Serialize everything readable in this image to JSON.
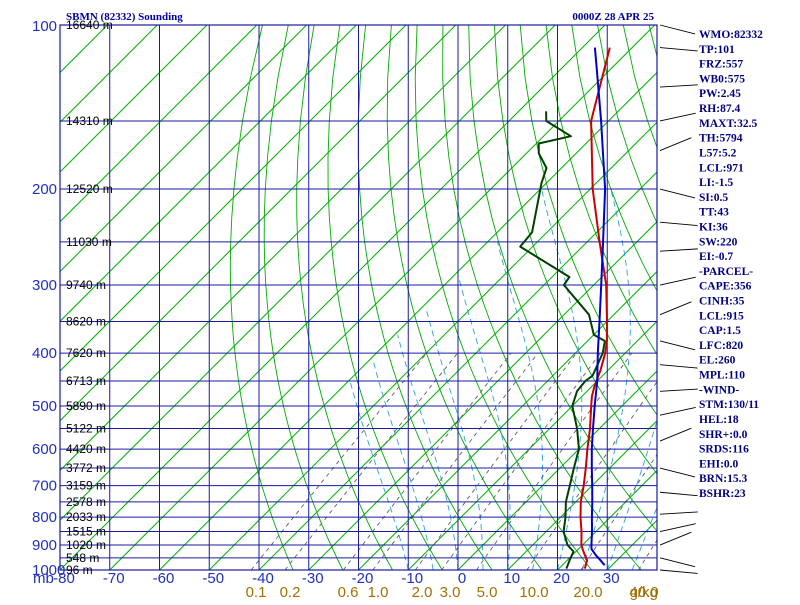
{
  "header": {
    "station": "SBMN (82332) Sounding",
    "time": "0000Z 28 APR 25"
  },
  "axis_labels": {
    "pressure_unit": "mb",
    "mixing_ratio_unit": "g/kg"
  },
  "indices": [
    "WMO:82332",
    "TP:101",
    "FRZ:557",
    "WB0:575",
    "PW:2.45",
    "RH:87.4",
    "MAXT:32.5",
    "TH:5794",
    "L57:5.2",
    "LCL:971",
    "LI:-1.5",
    "SI:0.5",
    "TT:43",
    "KI:36",
    "SW:220",
    "EI:-0.7",
    "-PARCEL-",
    "CAPE:356",
    "CINH:35",
    "LCL:915",
    "CAP:1.5",
    "LFC:820",
    "EL:260",
    "MPL:110",
    "-WIND-",
    "STM:130/11",
    "HEL:18",
    "SHR+:0.0",
    "SRDS:116",
    "EHI:0.0",
    "BRN:15.3",
    "BSHR:23"
  ],
  "colors": {
    "temperature": "#cc0000",
    "dewpoint": "#004000",
    "parcel": "#0000cc",
    "grid": "#1a1aa0",
    "isotherm": "#00b000",
    "dry_adiabat": "#00aa00",
    "moist_adiabat": "#2aa0e0",
    "mixing_ratio": "#606060"
  },
  "chart_data": {
    "type": "line",
    "title": "SBMN (82332) Sounding",
    "subtitle": "0000Z 28 APR 25",
    "xlabel": "",
    "ylabel": "mb",
    "xlim": [
      -80,
      40
    ],
    "ylim": [
      1000,
      100
    ],
    "y_scale": "log",
    "skew_t": true,
    "grid": true,
    "pressure_ticks": [
      100,
      200,
      300,
      400,
      500,
      600,
      700,
      800,
      900,
      1000
    ],
    "temperature_ticks": [
      -80,
      -70,
      -60,
      -50,
      -40,
      -30,
      -20,
      -10,
      0,
      10,
      20,
      30,
      40
    ],
    "mixing_ratio_ticks": [
      "0.1",
      "0.2",
      "0.6",
      "1.0",
      "2.0",
      "3.0",
      "5.0",
      "10.0",
      "20.0",
      "40.0"
    ],
    "height_labels": [
      {
        "p": 100,
        "label": "16640 m"
      },
      {
        "p": 150,
        "label": "14310 m"
      },
      {
        "p": 200,
        "label": "12520 m"
      },
      {
        "p": 250,
        "label": "11030 m"
      },
      {
        "p": 300,
        "label": "9740 m"
      },
      {
        "p": 350,
        "label": "8620 m"
      },
      {
        "p": 400,
        "label": "7620 m"
      },
      {
        "p": 450,
        "label": "6713 m"
      },
      {
        "p": 500,
        "label": "5890 m"
      },
      {
        "p": 550,
        "label": "5122 m"
      },
      {
        "p": 600,
        "label": "4420 m"
      },
      {
        "p": 650,
        "label": "3772 m"
      },
      {
        "p": 700,
        "label": "3159 m"
      },
      {
        "p": 750,
        "label": "2578 m"
      },
      {
        "p": 800,
        "label": "2033 m"
      },
      {
        "p": 850,
        "label": "1515 m"
      },
      {
        "p": 900,
        "label": "1020 m"
      },
      {
        "p": 950,
        "label": "548 m"
      },
      {
        "p": 1000,
        "label": "96 m"
      }
    ],
    "series": [
      {
        "key": "temperature",
        "p": [
          994,
          960,
          925,
          900,
          850,
          800,
          750,
          700,
          650,
          600,
          550,
          500,
          480,
          460,
          430,
          400,
          380,
          350,
          300,
          250,
          200,
          150,
          110
        ],
        "t": [
          25.2,
          24.0,
          21.5,
          19.8,
          17.1,
          14.0,
          11.0,
          8.3,
          5.2,
          1.7,
          -1.9,
          -6.2,
          -8.0,
          -9.5,
          -11.5,
          -14.0,
          -16.1,
          -20.0,
          -27.5,
          -37.5,
          -49.5,
          -63.5,
          -74.5
        ]
      },
      {
        "key": "dewpoint",
        "p": [
          994,
          960,
          925,
          900,
          850,
          800,
          750,
          700,
          650,
          600,
          550,
          500,
          470,
          450,
          440,
          400,
          380,
          370,
          340,
          300,
          290,
          255,
          240,
          195,
          183,
          172,
          165,
          160,
          150,
          144
        ],
        "t": [
          21.5,
          20.5,
          19.5,
          17.0,
          13.5,
          11.0,
          8.0,
          5.5,
          2.8,
          0.0,
          -4.5,
          -10.0,
          -12.0,
          -12.4,
          -12.0,
          -14.5,
          -16.5,
          -20.0,
          -25.0,
          -36.0,
          -36.5,
          -52.5,
          -53.0,
          -61.0,
          -63.0,
          -67.5,
          -69.5,
          -64.5,
          -72.5,
          -74.5
        ]
      },
      {
        "key": "parcel",
        "p": [
          980,
          960,
          940,
          915,
          900,
          850,
          800,
          750,
          700,
          650,
          600,
          550,
          500,
          450,
          400,
          350,
          300,
          260,
          200,
          150,
          120,
          110
        ],
        "t": [
          28.5,
          26.7,
          24.8,
          22.6,
          21.8,
          19.2,
          16.3,
          13.3,
          10.0,
          6.4,
          2.6,
          -1.3,
          -5.5,
          -10.0,
          -15.5,
          -21.5,
          -28.5,
          -35.0,
          -47.0,
          -61.5,
          -73.0,
          -77.5
        ]
      }
    ]
  }
}
